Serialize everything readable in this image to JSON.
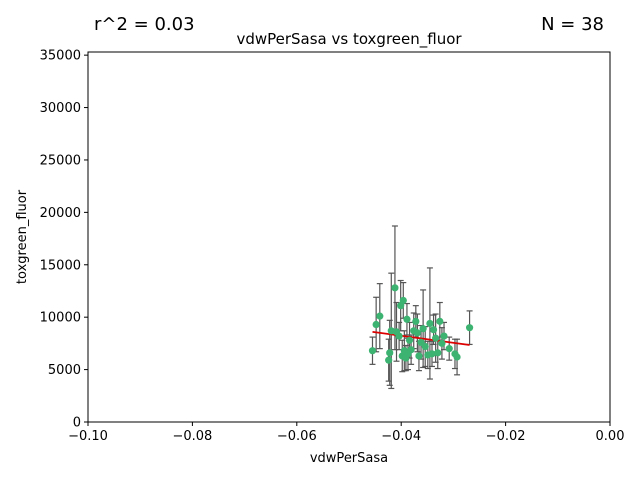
{
  "header": {
    "r2_text": "r^2 = 0.03",
    "n_text": "N = 38"
  },
  "chart_data": {
    "type": "scatter",
    "title": "vdwPerSasa vs toxgreen_fluor",
    "xlabel": "vdwPerSasa",
    "ylabel": "toxgreen_fluor",
    "xlim": [
      -0.1,
      0.0
    ],
    "ylim": [
      0,
      35300
    ],
    "x_ticks": [
      -0.1,
      -0.08,
      -0.06,
      -0.04,
      -0.02,
      0.0
    ],
    "x_tick_labels": [
      "−0.10",
      "−0.08",
      "−0.06",
      "−0.04",
      "−0.02",
      "0.00"
    ],
    "y_ticks": [
      0,
      5000,
      10000,
      15000,
      20000,
      25000,
      30000,
      35000
    ],
    "y_tick_labels": [
      "0",
      "5000",
      "10000",
      "15000",
      "20000",
      "25000",
      "30000",
      "35000"
    ],
    "grid": false,
    "point_color": "#3cb371",
    "errorbar_color": "#555555",
    "fit_color": "#dd0000",
    "points": [
      {
        "x": -0.0455,
        "y": 6800,
        "err": 1300
      },
      {
        "x": -0.0448,
        "y": 9300,
        "err": 2600
      },
      {
        "x": -0.0441,
        "y": 10100,
        "err": 3100
      },
      {
        "x": -0.0424,
        "y": 5900,
        "err": 2000
      },
      {
        "x": -0.0422,
        "y": 6600,
        "err": 3100
      },
      {
        "x": -0.0419,
        "y": 8700,
        "err": 5500
      },
      {
        "x": -0.0412,
        "y": 12800,
        "err": 5900
      },
      {
        "x": -0.0409,
        "y": 8600,
        "err": 2800
      },
      {
        "x": -0.0404,
        "y": 8200,
        "err": 1300
      },
      {
        "x": -0.0401,
        "y": 11100,
        "err": 2400
      },
      {
        "x": -0.0398,
        "y": 6300,
        "err": 1500
      },
      {
        "x": -0.0396,
        "y": 11600,
        "err": 1700
      },
      {
        "x": -0.0394,
        "y": 6800,
        "err": 1900
      },
      {
        "x": -0.0391,
        "y": 6100,
        "err": 1200
      },
      {
        "x": -0.0389,
        "y": 9800,
        "err": 1500
      },
      {
        "x": -0.0387,
        "y": 6500,
        "err": 1500
      },
      {
        "x": -0.0384,
        "y": 7800,
        "err": 1700
      },
      {
        "x": -0.0381,
        "y": 6900,
        "err": 1400
      },
      {
        "x": -0.0376,
        "y": 8700,
        "err": 1700
      },
      {
        "x": -0.0372,
        "y": 9600,
        "err": 1500
      },
      {
        "x": -0.0369,
        "y": 8500,
        "err": 1800
      },
      {
        "x": -0.0366,
        "y": 6300,
        "err": 1400
      },
      {
        "x": -0.0362,
        "y": 7600,
        "err": 1600
      },
      {
        "x": -0.0358,
        "y": 8900,
        "err": 3700
      },
      {
        "x": -0.0354,
        "y": 7200,
        "err": 1900
      },
      {
        "x": -0.0349,
        "y": 6400,
        "err": 1300
      },
      {
        "x": -0.0345,
        "y": 9400,
        "err": 5300
      },
      {
        "x": -0.0341,
        "y": 6500,
        "err": 1200
      },
      {
        "x": -0.0338,
        "y": 8800,
        "err": 1400
      },
      {
        "x": -0.0334,
        "y": 8000,
        "err": 2300
      },
      {
        "x": -0.033,
        "y": 6600,
        "err": 1500
      },
      {
        "x": -0.0326,
        "y": 9600,
        "err": 1800
      },
      {
        "x": -0.0322,
        "y": 7500,
        "err": 1500
      },
      {
        "x": -0.0318,
        "y": 8200,
        "err": 1300
      },
      {
        "x": -0.0308,
        "y": 7000,
        "err": 1100
      },
      {
        "x": -0.0297,
        "y": 6500,
        "err": 1400
      },
      {
        "x": -0.0293,
        "y": 6200,
        "err": 1700
      },
      {
        "x": -0.0269,
        "y": 9000,
        "err": 1600
      }
    ],
    "fit_line": {
      "x": [
        -0.0455,
        -0.0269
      ],
      "y": [
        8600,
        7350
      ]
    }
  }
}
